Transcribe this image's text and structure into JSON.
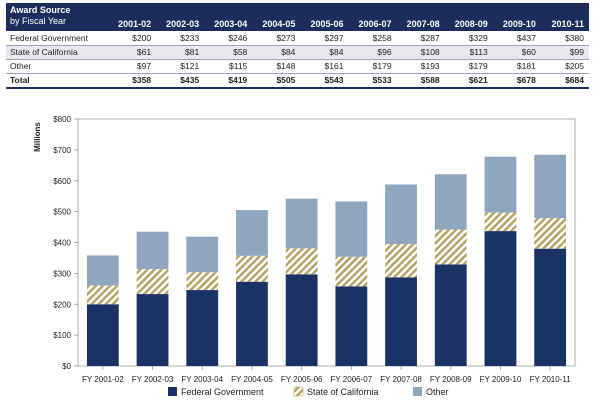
{
  "table": {
    "header_title": "Award Source",
    "header_subtitle": "by Fiscal Year",
    "years": [
      "2001-02",
      "2002-03",
      "2003-04",
      "2004-05",
      "2005-06",
      "2006-07",
      "2007-08",
      "2008-09",
      "2009-10",
      "2010-11"
    ],
    "rows": [
      {
        "label": "Federal Government",
        "values": [
          "$200",
          "$233",
          "$246",
          "$273",
          "$297",
          "$258",
          "$287",
          "$329",
          "$437",
          "$380"
        ]
      },
      {
        "label": "State of California",
        "values": [
          "$61",
          "$81",
          "$58",
          "$84",
          "$84",
          "$96",
          "$108",
          "$113",
          "$60",
          "$99"
        ]
      },
      {
        "label": "Other",
        "values": [
          "$97",
          "$121",
          "$115",
          "$148",
          "$161",
          "$179",
          "$193",
          "$179",
          "$181",
          "$205"
        ]
      }
    ],
    "total": {
      "label": "Total",
      "values": [
        "$358",
        "$435",
        "$419",
        "$505",
        "$543",
        "$533",
        "$588",
        "$621",
        "$678",
        "$684"
      ]
    }
  },
  "chart_data": {
    "type": "bar",
    "stacked": true,
    "categories": [
      "FY 2001-02",
      "FY 2002-03",
      "FY 2003-04",
      "FY 2004-05",
      "FY 2005-06",
      "FY 2006-07",
      "FY 2007-08",
      "FY 2008-09",
      "FY 2009-10",
      "FY 2010-11"
    ],
    "series": [
      {
        "name": "Federal Government",
        "values": [
          200,
          233,
          246,
          273,
          297,
          258,
          287,
          329,
          437,
          380
        ],
        "color": "#1b3266"
      },
      {
        "name": "State of California",
        "values": [
          61,
          81,
          58,
          84,
          84,
          96,
          108,
          113,
          60,
          99
        ],
        "color": "#c9b57a",
        "pattern": "diagonal-hatch"
      },
      {
        "name": "Other",
        "values": [
          97,
          121,
          115,
          148,
          161,
          179,
          193,
          179,
          181,
          205
        ],
        "color": "#8fa6c0"
      }
    ],
    "ylabel": "Millions",
    "ylim": [
      0,
      800
    ],
    "yticks": [
      0,
      100,
      200,
      300,
      400,
      500,
      600,
      700,
      800
    ],
    "ytick_labels": [
      "$0",
      "$100",
      "$200",
      "$300",
      "$400",
      "$500",
      "$600",
      "$700",
      "$800"
    ],
    "grid": false,
    "legend_position": "bottom"
  }
}
